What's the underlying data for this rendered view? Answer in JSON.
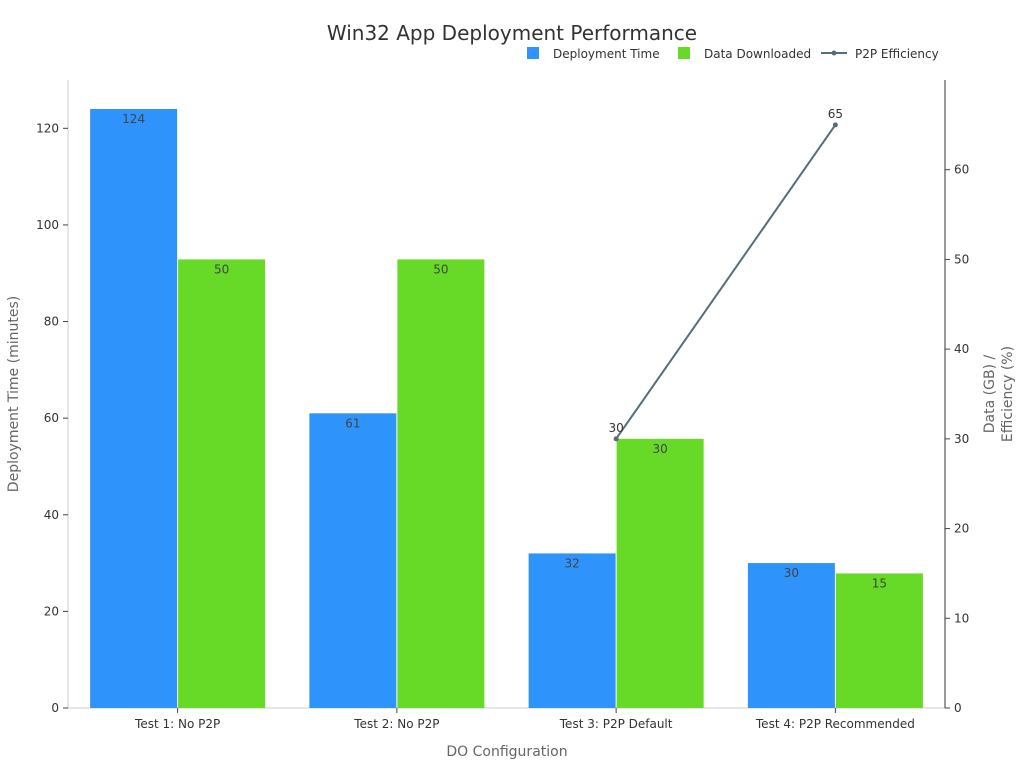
{
  "chart_data": {
    "type": "bar",
    "title": "Win32 App Deployment Performance",
    "xlabel": "DO Configuration",
    "ylabel": "Deployment Time (minutes)",
    "y2label_line1": "Data (GB) /",
    "y2label_line2": "Efficiency (%)",
    "categories": [
      "Test 1: No P2P",
      "Test 2: No P2P",
      "Test 3: P2P Default",
      "Test 4: P2P Recommended"
    ],
    "ylim": [
      0,
      130
    ],
    "y2lim": [
      0,
      70
    ],
    "yticks": [
      0,
      20,
      40,
      60,
      80,
      100,
      120
    ],
    "y2ticks": [
      0,
      10,
      20,
      30,
      40,
      50,
      60
    ],
    "grid": false,
    "legend_position": "top-right",
    "series": [
      {
        "name": "Deployment Time",
        "kind": "bar",
        "axis": "left",
        "color": "#2E93FA",
        "values": [
          124,
          61,
          32,
          30
        ],
        "labels": [
          "124",
          "61",
          "32",
          "30"
        ]
      },
      {
        "name": "Data Downloaded",
        "kind": "bar",
        "axis": "right",
        "color": "#66DA26",
        "values": [
          50,
          50,
          30,
          15
        ],
        "labels": [
          "50",
          "50",
          "30",
          "15"
        ]
      },
      {
        "name": "P2P Efficiency",
        "kind": "line",
        "axis": "right",
        "color": "#546E7A",
        "values": [
          null,
          null,
          30,
          65
        ],
        "labels": [
          "",
          "",
          "30",
          "65"
        ]
      }
    ]
  }
}
